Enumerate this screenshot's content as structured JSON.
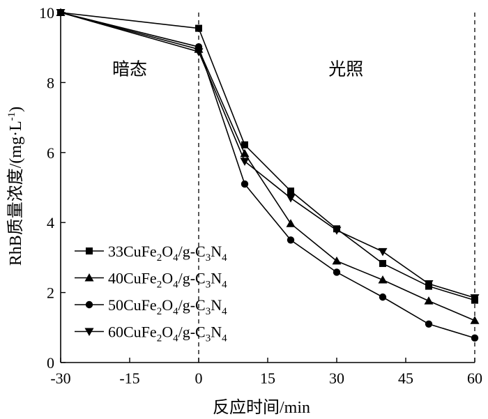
{
  "chart_data": {
    "type": "line",
    "title": "",
    "xlabel": "反应时间/min",
    "ylabel_main": "RhB质量浓度/(mg·L",
    "ylabel_sup": "-1",
    "ylabel_tail": ")",
    "xlim": [
      -30,
      60
    ],
    "ylim": [
      0,
      10
    ],
    "xticks": [
      -30,
      -15,
      0,
      15,
      30,
      45,
      60
    ],
    "xtick_labels": [
      "-30",
      "-15",
      "0",
      "15",
      "30",
      "45",
      "60"
    ],
    "yticks": [
      0,
      2,
      4,
      6,
      8,
      10
    ],
    "ytick_labels": [
      "0",
      "2",
      "4",
      "6",
      "8",
      "10"
    ],
    "x": [
      -30,
      0,
      10,
      20,
      30,
      40,
      50,
      60
    ],
    "vlines": [
      0,
      60
    ],
    "regions": [
      {
        "label": "暗态",
        "x_center": -15,
        "y": 8.4
      },
      {
        "label": "光照",
        "x_center": 32,
        "y": 8.4
      }
    ],
    "legend_position": "bottom-left",
    "series": [
      {
        "name": "33CuFe2O4/g-C3N4",
        "marker": "square",
        "parts": [
          [
            "33CuFe",
            "n"
          ],
          [
            "2",
            "sub"
          ],
          [
            "O",
            "n"
          ],
          [
            "4",
            "sub"
          ],
          [
            "/g-C",
            "n"
          ],
          [
            "3",
            "sub"
          ],
          [
            "N",
            "n"
          ],
          [
            "4",
            "sub"
          ]
        ],
        "values": [
          10.0,
          9.55,
          6.22,
          4.9,
          3.82,
          2.83,
          2.18,
          1.78
        ]
      },
      {
        "name": "40CuFe2O4/g-C3N4",
        "marker": "triangle-up",
        "parts": [
          [
            "40CuFe",
            "n"
          ],
          [
            "2",
            "sub"
          ],
          [
            "O",
            "n"
          ],
          [
            "4",
            "sub"
          ],
          [
            "/g-C",
            "n"
          ],
          [
            "3",
            "sub"
          ],
          [
            "N",
            "n"
          ],
          [
            "4",
            "sub"
          ]
        ],
        "values": [
          10.0,
          8.95,
          5.97,
          3.97,
          2.9,
          2.36,
          1.76,
          1.2
        ]
      },
      {
        "name": "50CuFe2O4/g-C3N4",
        "marker": "circle",
        "parts": [
          [
            "50CuFe",
            "n"
          ],
          [
            "2",
            "sub"
          ],
          [
            "O",
            "n"
          ],
          [
            "4",
            "sub"
          ],
          [
            "/g-C",
            "n"
          ],
          [
            "3",
            "sub"
          ],
          [
            "N",
            "n"
          ],
          [
            "4",
            "sub"
          ]
        ],
        "values": [
          10.0,
          9.02,
          5.1,
          3.5,
          2.58,
          1.87,
          1.1,
          0.7
        ]
      },
      {
        "name": "60CuFe2O4/g-C3N4",
        "marker": "triangle-down",
        "parts": [
          [
            "60CuFe",
            "n"
          ],
          [
            "2",
            "sub"
          ],
          [
            "O",
            "n"
          ],
          [
            "4",
            "sub"
          ],
          [
            "/g-C",
            "n"
          ],
          [
            "3",
            "sub"
          ],
          [
            "N",
            "n"
          ],
          [
            "4",
            "sub"
          ]
        ],
        "values": [
          10.0,
          8.88,
          5.75,
          4.7,
          3.78,
          3.17,
          2.25,
          1.85
        ]
      }
    ]
  }
}
